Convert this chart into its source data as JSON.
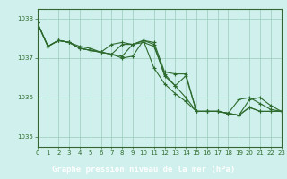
{
  "series": [
    {
      "x": [
        0,
        1,
        2,
        3,
        4,
        5,
        6,
        7,
        8,
        9,
        10,
        11,
        12,
        13,
        14,
        15,
        16,
        17,
        18,
        19,
        20,
        21,
        22,
        23
      ],
      "y": [
        1037.9,
        1037.3,
        1037.45,
        1037.4,
        1037.25,
        1037.2,
        1037.15,
        1037.1,
        1037.35,
        1037.35,
        1037.4,
        1037.3,
        1036.6,
        1036.3,
        1036.55,
        1035.65,
        1035.65,
        1035.65,
        1035.6,
        1035.55,
        1035.75,
        1035.65,
        1035.65,
        1035.65
      ]
    },
    {
      "x": [
        0,
        1,
        2,
        3,
        4,
        5,
        6,
        7,
        8,
        9,
        10,
        11,
        12,
        13,
        14,
        15,
        16,
        17,
        18,
        19,
        20,
        21,
        22,
        23
      ],
      "y": [
        1037.9,
        1037.3,
        1037.45,
        1037.4,
        1037.3,
        1037.25,
        1037.15,
        1037.1,
        1037.05,
        1037.35,
        1037.45,
        1037.4,
        1036.65,
        1036.6,
        1036.6,
        1035.65,
        1035.65,
        1035.65,
        1035.6,
        1035.95,
        1036.0,
        1035.85,
        1035.7,
        1035.65
      ]
    },
    {
      "x": [
        0,
        1,
        2,
        3,
        4,
        5,
        6,
        7,
        8,
        9,
        10,
        11,
        12,
        13,
        14,
        15,
        16,
        17,
        18,
        19,
        20,
        21,
        22,
        23
      ],
      "y": [
        1037.9,
        1037.3,
        1037.45,
        1037.4,
        1037.25,
        1037.2,
        1037.15,
        1037.35,
        1037.4,
        1037.35,
        1037.45,
        1036.75,
        1036.35,
        1036.1,
        1035.9,
        1035.65,
        1035.65,
        1035.65,
        1035.6,
        1035.55,
        1035.95,
        1036.0,
        1035.8,
        1035.65
      ]
    },
    {
      "x": [
        0,
        1,
        2,
        3,
        4,
        5,
        6,
        7,
        8,
        9,
        10,
        11,
        12,
        13,
        14,
        15,
        16,
        17,
        18,
        19,
        20,
        21,
        22,
        23
      ],
      "y": [
        1037.9,
        1037.3,
        1037.45,
        1037.4,
        1037.25,
        1037.2,
        1037.15,
        1037.1,
        1037.0,
        1037.05,
        1037.45,
        1037.35,
        1036.55,
        1036.3,
        1036.0,
        1035.65,
        1035.65,
        1035.65,
        1035.6,
        1035.55,
        1035.75,
        1035.65,
        1035.65,
        1035.65
      ]
    }
  ],
  "line_color": "#2d6a2d",
  "marker": "+",
  "markersize": 3,
  "linewidth": 0.8,
  "xlim": [
    0,
    23
  ],
  "ylim": [
    1034.75,
    1038.25
  ],
  "yticks": [
    1035,
    1036,
    1037,
    1038
  ],
  "xticks": [
    0,
    1,
    2,
    3,
    4,
    5,
    6,
    7,
    8,
    9,
    10,
    11,
    12,
    13,
    14,
    15,
    16,
    17,
    18,
    19,
    20,
    21,
    22,
    23
  ],
  "xlabel": "Graphe pression niveau de la mer (hPa)",
  "bg_color": "#cff0ec",
  "grid_color": "#99ccbb",
  "axis_color": "#336633",
  "tick_color": "#2d6a2d",
  "label_color": "#2d5a1e",
  "xlabel_fontsize": 6.5,
  "tick_fontsize": 5.0,
  "xlabel_bg": "#5a9050"
}
